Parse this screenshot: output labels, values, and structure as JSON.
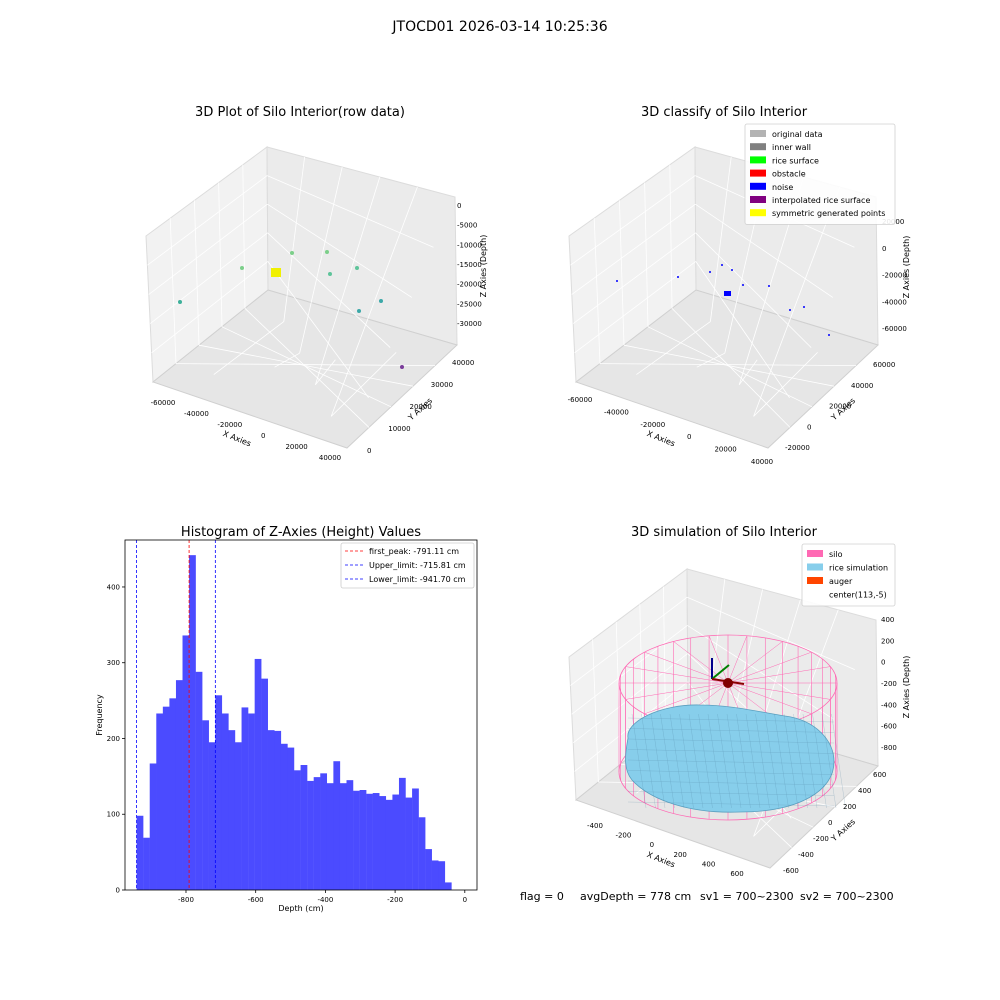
{
  "figure": {
    "suptitle": "JTOCD01 2026-03-14 10:25:36",
    "status": {
      "flag": "flag = 0",
      "avg": "avgDepth = 778 cm",
      "sv1": "sv1 = 700~2300",
      "sv2": "sv2 = 700~2300"
    }
  },
  "chart_data": [
    {
      "id": "raw",
      "type": "scatter",
      "title": "3D Plot of Silo Interior(row data)",
      "xlabel": "X Axies",
      "ylabel": "Y Axies",
      "zlabel": "Z Axies (Depth)",
      "x_ticks": [
        "-60000",
        "-40000",
        "-20000",
        "0",
        "20000",
        "40000"
      ],
      "y_ticks": [
        "0",
        "10000",
        "20000",
        "30000",
        "40000"
      ],
      "z_ticks": [
        "0",
        "-5000",
        "-10000",
        "-15000",
        "-20000",
        "-25000",
        "-30000"
      ],
      "grid": true
    },
    {
      "id": "classify",
      "type": "scatter",
      "title": "3D classify of Silo Interior",
      "xlabel": "X Axies",
      "ylabel": "Y Axies",
      "zlabel": "Z Axies (Depth)",
      "x_ticks": [
        "-60000",
        "-40000",
        "-20000",
        "0",
        "20000",
        "40000"
      ],
      "y_ticks": [
        "-20000",
        "0",
        "20000",
        "40000",
        "60000"
      ],
      "z_ticks": [
        "20000",
        "0",
        "-20000",
        "-40000",
        "-60000"
      ],
      "legend_position": "top-right",
      "legend": [
        {
          "label": "original data",
          "color": "#b3b3b3"
        },
        {
          "label": "inner wall",
          "color": "#808080"
        },
        {
          "label": "rice surface",
          "color": "#00ff00"
        },
        {
          "label": "obstacle",
          "color": "#ff0000"
        },
        {
          "label": "noise",
          "color": "#0000ff"
        },
        {
          "label": "interpolated rice surface",
          "color": "#800080"
        },
        {
          "label": "symmetric generated points",
          "color": "#ffff00"
        }
      ],
      "grid": true
    },
    {
      "id": "hist",
      "type": "bar",
      "title": "Histogram of Z-Axies (Height) Values",
      "xlabel": "Depth (cm)",
      "ylabel": "Frequency",
      "xlim": [
        -975,
        35
      ],
      "ylim": [
        0,
        462
      ],
      "x_ticks": [
        -800,
        -600,
        -400,
        -200,
        0
      ],
      "y_ticks": [
        0,
        100,
        200,
        300,
        400
      ],
      "bin_start": -941.7,
      "bin_width": 18.82,
      "counts": [
        98,
        69,
        167,
        233,
        242,
        253,
        277,
        336,
        442,
        288,
        224,
        195,
        257,
        233,
        211,
        195,
        241,
        233,
        305,
        279,
        211,
        210,
        193,
        188,
        158,
        165,
        144,
        149,
        154,
        141,
        170,
        141,
        145,
        131,
        132,
        127,
        128,
        124,
        119,
        126,
        148,
        122,
        134,
        96,
        54,
        39,
        38,
        10
      ],
      "bar_color": "#4b4bff",
      "legend_position": "top-right",
      "lines": [
        {
          "label": "first_peak: -791.11 cm",
          "value": -791.11,
          "color": "#ff0000"
        },
        {
          "label": "Upper_limit: -715.81 cm",
          "value": -715.81,
          "color": "#0000ff"
        },
        {
          "label": "Lower_limit: -941.70 cm",
          "value": -941.7,
          "color": "#0000ff"
        }
      ],
      "grid": false
    },
    {
      "id": "sim",
      "type": "area",
      "title": "3D simulation of Silo Interior",
      "xlabel": "X Axies",
      "ylabel": "Y Axies",
      "zlabel": "Z Axies (Depth)",
      "x_ticks": [
        "-400",
        "-200",
        "0",
        "200",
        "400",
        "600"
      ],
      "y_ticks": [
        "-600",
        "-400",
        "-200",
        "0",
        "200",
        "400",
        "600"
      ],
      "z_ticks": [
        "400",
        "200",
        "0",
        "-200",
        "-400",
        "-600",
        "-800"
      ],
      "legend_position": "top-right",
      "legend": [
        {
          "label": "silo",
          "color": "#ff69b4"
        },
        {
          "label": "rice simulation",
          "color": "#87ceeb"
        },
        {
          "label": "auger",
          "color": "#ff4500"
        },
        {
          "label": "center(113,-5)",
          "color": ""
        }
      ],
      "grid": true
    }
  ]
}
